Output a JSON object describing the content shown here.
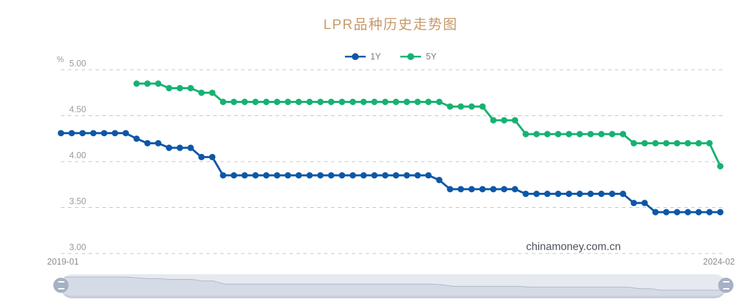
{
  "title": "LPR品种历史走势图",
  "y_axis": {
    "unit": "%",
    "tick_labels": [
      "5.00",
      "4.50",
      "4.00",
      "3.50",
      "3.00"
    ]
  },
  "x_axis": {
    "left_label": "2019-01",
    "right_label": "2024-02"
  },
  "watermark": "chinamoney.com.cn",
  "legend": {
    "items": [
      {
        "label": "1Y",
        "color": "#0d57a7"
      },
      {
        "label": "5Y",
        "color": "#16b271"
      }
    ]
  },
  "colors": {
    "title": "#c79a6c",
    "axis_text": "#9a9a9a",
    "x_label_text": "#8d8d8d",
    "gridline": "#c4c4c4",
    "watermark": "#4d525c",
    "series_1y": "#0d57a7",
    "series_5y": "#16b271",
    "slider_track": "#e6e9f0",
    "slider_fill": "#d5dbe6",
    "slider_stroke": "#b0b8c6",
    "slider_handle": "#a6b1c5",
    "slider_border": "#c9ced9"
  },
  "chart_data": {
    "type": "line",
    "title": "LPR品种历史走势图",
    "x_unit": "month",
    "x_range": [
      "2019-01",
      "2024-02"
    ],
    "n_months": 62,
    "ylabel": "%",
    "ylim": [
      3.0,
      5.0
    ],
    "yticks": [
      5.0,
      4.5,
      4.0,
      3.5,
      3.0
    ],
    "grid": true,
    "legend_position": "top",
    "series": [
      {
        "name": "1Y",
        "color": "#0d57a7",
        "start_month": "2019-01",
        "start_index": 0,
        "values": [
          4.31,
          4.31,
          4.31,
          4.31,
          4.31,
          4.31,
          4.31,
          4.25,
          4.2,
          4.2,
          4.15,
          4.15,
          4.15,
          4.05,
          4.05,
          3.85,
          3.85,
          3.85,
          3.85,
          3.85,
          3.85,
          3.85,
          3.85,
          3.85,
          3.85,
          3.85,
          3.85,
          3.85,
          3.85,
          3.85,
          3.85,
          3.85,
          3.85,
          3.85,
          3.85,
          3.8,
          3.7,
          3.7,
          3.7,
          3.7,
          3.7,
          3.7,
          3.7,
          3.65,
          3.65,
          3.65,
          3.65,
          3.65,
          3.65,
          3.65,
          3.65,
          3.65,
          3.65,
          3.55,
          3.55,
          3.45,
          3.45,
          3.45,
          3.45,
          3.45,
          3.45,
          3.45
        ]
      },
      {
        "name": "5Y",
        "color": "#16b271",
        "start_month": "2019-08",
        "start_index": 7,
        "values": [
          4.85,
          4.85,
          4.85,
          4.8,
          4.8,
          4.8,
          4.75,
          4.75,
          4.65,
          4.65,
          4.65,
          4.65,
          4.65,
          4.65,
          4.65,
          4.65,
          4.65,
          4.65,
          4.65,
          4.65,
          4.65,
          4.65,
          4.65,
          4.65,
          4.65,
          4.65,
          4.65,
          4.65,
          4.65,
          4.6,
          4.6,
          4.6,
          4.6,
          4.45,
          4.45,
          4.45,
          4.3,
          4.3,
          4.3,
          4.3,
          4.3,
          4.3,
          4.3,
          4.3,
          4.3,
          4.3,
          4.2,
          4.2,
          4.2,
          4.2,
          4.2,
          4.2,
          4.2,
          4.2,
          3.95
        ]
      }
    ]
  }
}
